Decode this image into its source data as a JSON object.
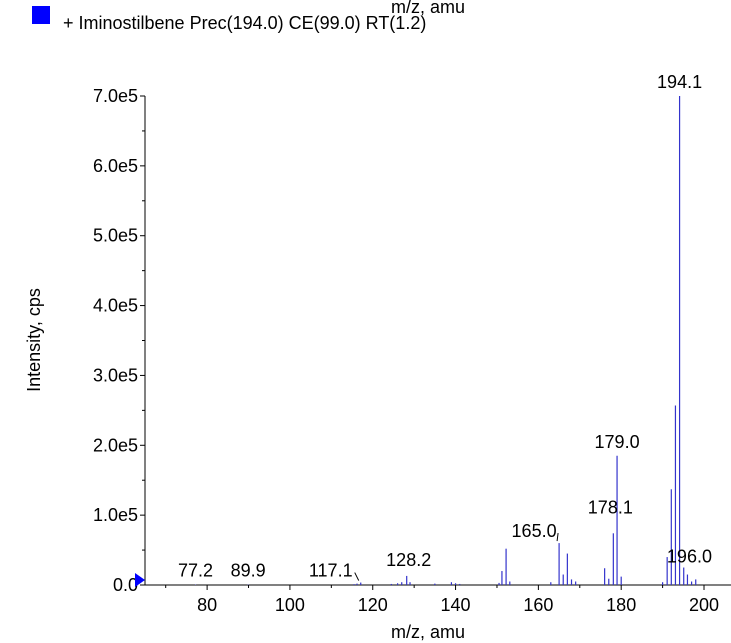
{
  "top_cut_label": "m/z, amu",
  "legend": {
    "text": "+ Iminostilbene Prec(194.0) CE(99.0) RT(1.2)",
    "color": "#0000ff"
  },
  "chart_data": {
    "type": "bar",
    "xlabel": "m/z, amu",
    "ylabel": "Intensity, cps",
    "xlim": [
      65,
      207
    ],
    "ylim": [
      0,
      700000
    ],
    "x_ticks": [
      80,
      100,
      120,
      140,
      160,
      180,
      200
    ],
    "y_ticks": [
      0,
      100000,
      200000,
      300000,
      400000,
      500000,
      600000,
      700000
    ],
    "y_tick_labels": [
      "0.0",
      "1.0e5",
      "2.0e5",
      "3.0e5",
      "4.0e5",
      "5.0e5",
      "6.0e5",
      "7.0e5"
    ],
    "grid": false,
    "series_color": "#3333cc",
    "peaks": [
      {
        "x": 77.2,
        "y": 500
      },
      {
        "x": 89.9,
        "y": 500
      },
      {
        "x": 115.5,
        "y": 1200
      },
      {
        "x": 116.2,
        "y": 2000
      },
      {
        "x": 117.1,
        "y": 3500
      },
      {
        "x": 124.5,
        "y": 1500
      },
      {
        "x": 126.0,
        "y": 2500
      },
      {
        "x": 127.0,
        "y": 4000
      },
      {
        "x": 128.2,
        "y": 13000
      },
      {
        "x": 129.0,
        "y": 4000
      },
      {
        "x": 135.0,
        "y": 2000
      },
      {
        "x": 139.0,
        "y": 4000
      },
      {
        "x": 140.0,
        "y": 2500
      },
      {
        "x": 141.0,
        "y": 1500
      },
      {
        "x": 150.5,
        "y": 3000
      },
      {
        "x": 151.2,
        "y": 20000
      },
      {
        "x": 152.2,
        "y": 52000
      },
      {
        "x": 153.1,
        "y": 5000
      },
      {
        "x": 163.0,
        "y": 4000
      },
      {
        "x": 165.0,
        "y": 60000
      },
      {
        "x": 166.0,
        "y": 15000
      },
      {
        "x": 167.0,
        "y": 45000
      },
      {
        "x": 168.0,
        "y": 8000
      },
      {
        "x": 169.0,
        "y": 5000
      },
      {
        "x": 176.0,
        "y": 24000
      },
      {
        "x": 177.0,
        "y": 9000
      },
      {
        "x": 178.1,
        "y": 74000
      },
      {
        "x": 179.0,
        "y": 185000
      },
      {
        "x": 180.0,
        "y": 12000
      },
      {
        "x": 190.0,
        "y": 4000
      },
      {
        "x": 191.1,
        "y": 40000
      },
      {
        "x": 192.1,
        "y": 137000
      },
      {
        "x": 193.1,
        "y": 257000
      },
      {
        "x": 194.1,
        "y": 700000
      },
      {
        "x": 195.1,
        "y": 25000
      },
      {
        "x": 196.0,
        "y": 15000
      },
      {
        "x": 197.0,
        "y": 5000
      },
      {
        "x": 198.0,
        "y": 8000
      }
    ],
    "annotations": [
      {
        "text": "194.1",
        "x": 194.1
      },
      {
        "text": "179.0",
        "x": 179.0
      },
      {
        "text": "178.1",
        "x": 178.1
      },
      {
        "text": "165.0",
        "x": 165.0
      },
      {
        "text": "196.0",
        "x": 196.0
      },
      {
        "text": "128.2",
        "x": 128.2
      },
      {
        "text": "117.1",
        "x": 117.1
      },
      {
        "text": "89.9",
        "x": 89.9
      },
      {
        "text": "77.2",
        "x": 77.2
      }
    ]
  }
}
